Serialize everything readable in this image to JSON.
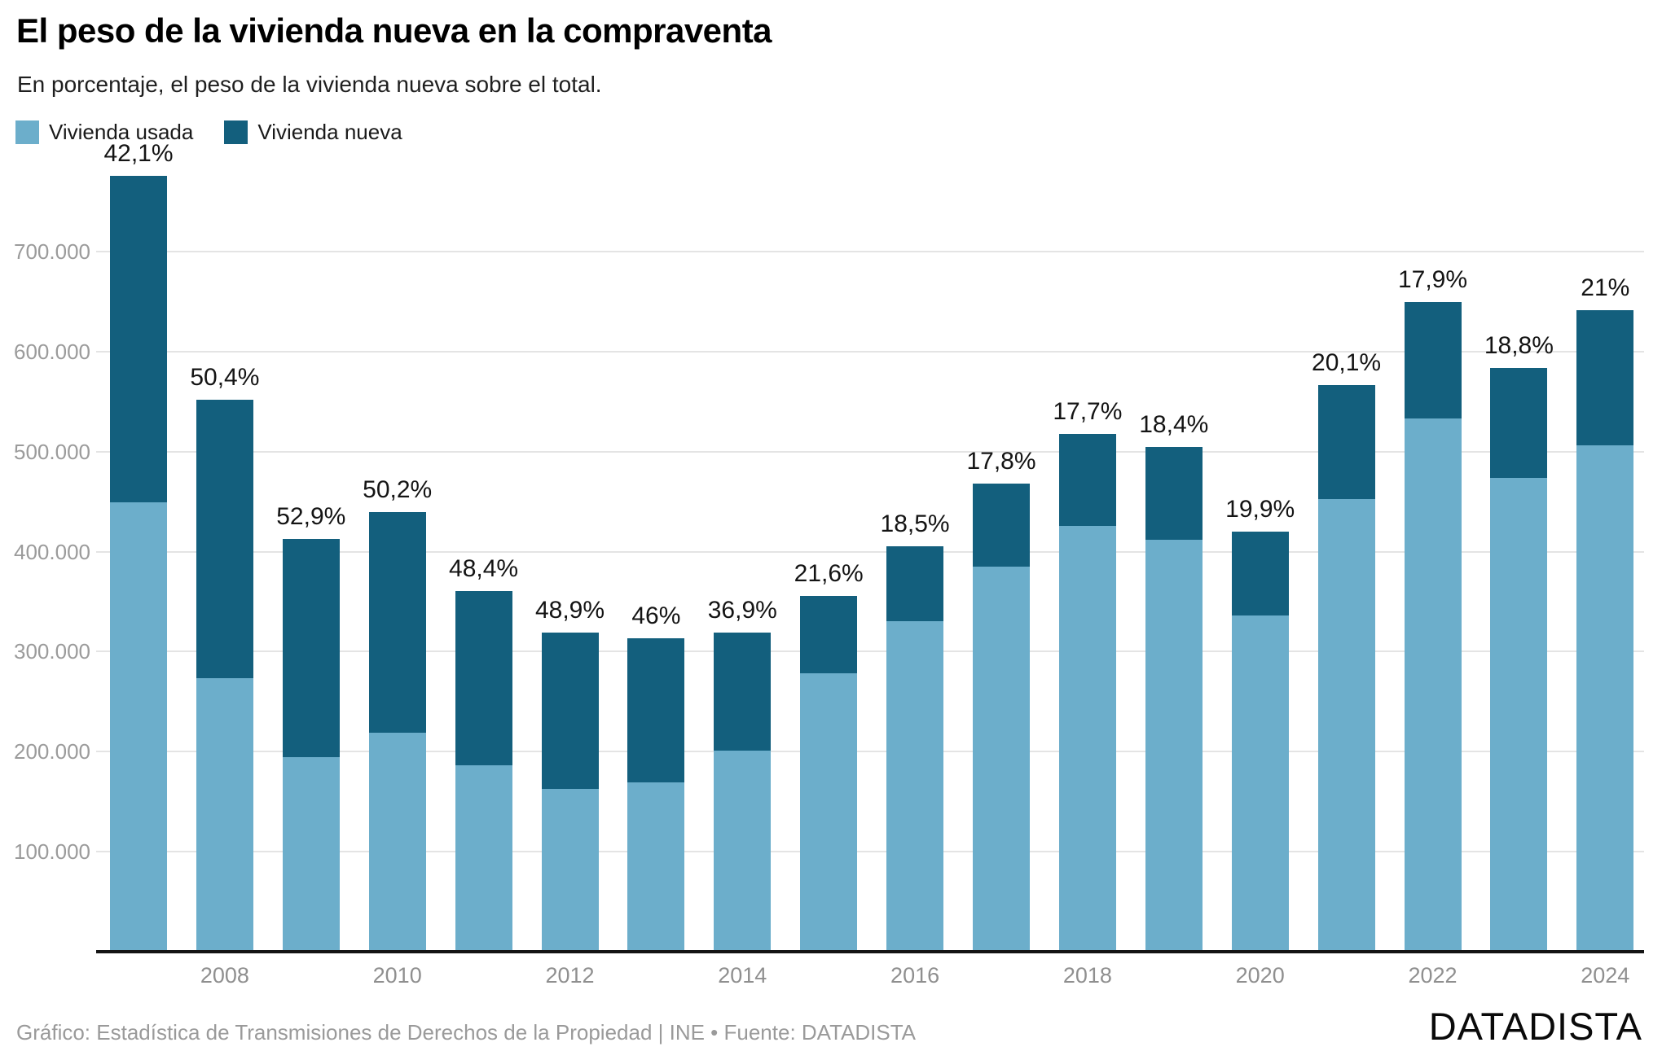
{
  "header": {
    "title": "El peso de la vivienda nueva en la compraventa",
    "subtitle": "En porcentaje, el peso de la vivienda nueva sobre el total."
  },
  "legend": [
    {
      "label": "Vivienda usada",
      "color": "#6CAECB"
    },
    {
      "label": "Vivienda nueva",
      "color": "#135F7D"
    }
  ],
  "colors": {
    "used": "#6CAECB",
    "new": "#135F7D",
    "grid": "#e4e4e4",
    "axis": "#141414",
    "tick_text": "#9b9b9b"
  },
  "footer": {
    "credit": "Gráfico: Estadística de Transmisiones de Derechos de la Propiedad | INE • Fuente: DATADISTA",
    "brand": "DATADISTA"
  },
  "chart_data": {
    "type": "bar",
    "stacked": true,
    "title": "El peso de la vivienda nueva en la compraventa",
    "subtitle": "En porcentaje, el peso de la vivienda nueva sobre el total.",
    "categories": [
      2007,
      2008,
      2009,
      2010,
      2011,
      2012,
      2013,
      2014,
      2015,
      2016,
      2017,
      2018,
      2019,
      2020,
      2021,
      2022,
      2023,
      2024
    ],
    "series": [
      {
        "name": "Vivienda usada",
        "color": "#6CAECB",
        "values": [
          448900,
          273800,
          194500,
          218900,
          186000,
          163100,
          169000,
          201400,
          278600,
          330600,
          384800,
          425900,
          412100,
          336500,
          452600,
          533200,
          474000,
          506400
        ]
      },
      {
        "name": "Vivienda nueva",
        "color": "#135F7D",
        "values": [
          326400,
          278300,
          218400,
          220700,
          174500,
          156100,
          144000,
          117800,
          76700,
          75100,
          83300,
          91600,
          92900,
          83600,
          113900,
          116300,
          109800,
          134600
        ]
      }
    ],
    "totals": [
      775300,
      552100,
      412900,
      439600,
      360500,
      319200,
      313000,
      319200,
      355300,
      405700,
      468100,
      517500,
      505000,
      420100,
      566500,
      649500,
      583800,
      641000
    ],
    "pct_new": [
      42.1,
      50.4,
      52.9,
      50.2,
      48.4,
      48.9,
      46,
      36.9,
      21.6,
      18.5,
      17.8,
      17.7,
      18.4,
      19.9,
      20.1,
      17.9,
      18.8,
      21
    ],
    "bar_labels": [
      "42,1%",
      "50,4%",
      "52,9%",
      "50,2%",
      "48,4%",
      "48,9%",
      "46%",
      "36,9%",
      "21,6%",
      "18,5%",
      "17,8%",
      "17,7%",
      "18,4%",
      "19,9%",
      "20,1%",
      "17,9%",
      "18,8%",
      "21%"
    ],
    "ylim": [
      0,
      780000
    ],
    "yticks": [
      100000,
      200000,
      300000,
      400000,
      500000,
      600000,
      700000
    ],
    "ytick_labels": [
      "100.000",
      "200.000",
      "300.000",
      "400.000",
      "500.000",
      "600.000",
      "700.000"
    ],
    "xtick_years": [
      2008,
      2010,
      2012,
      2014,
      2016,
      2018,
      2020,
      2022,
      2024
    ],
    "xtick_labels": [
      "2008",
      "2010",
      "2012",
      "2014",
      "2016",
      "2018",
      "2020",
      "2022",
      "2024"
    ],
    "grid": "horizontal",
    "legend_position": "top-left"
  }
}
